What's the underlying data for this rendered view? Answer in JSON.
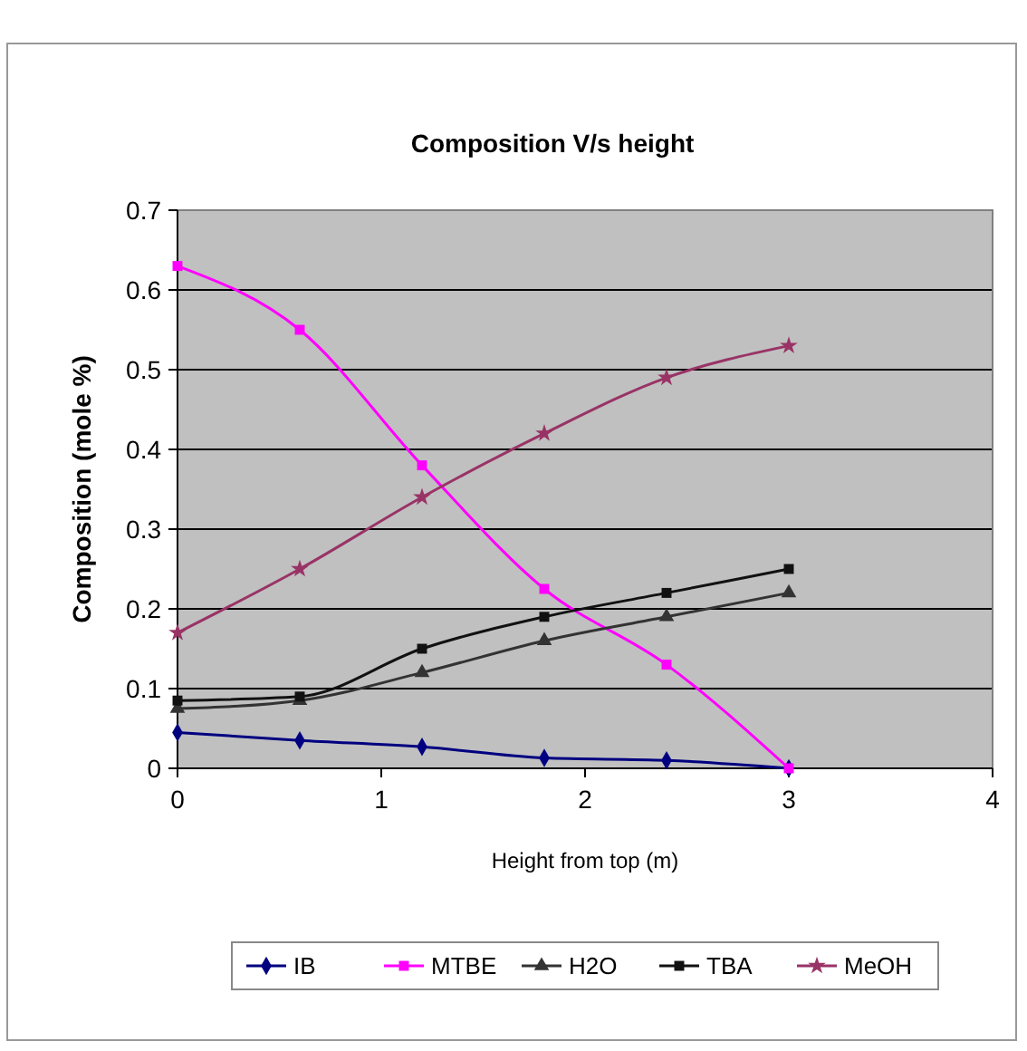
{
  "chart_data": {
    "type": "line",
    "title": "Composition V/s height",
    "xlabel": "Height from top (m)",
    "ylabel": "Composition (mole %)",
    "x": [
      0,
      0.6,
      1.2,
      1.8,
      2.4,
      3
    ],
    "xlim": [
      0,
      4
    ],
    "xticks": [
      0,
      1,
      2,
      3,
      4
    ],
    "ylim": [
      0,
      0.7
    ],
    "yticks": [
      0,
      0.1,
      0.2,
      0.3,
      0.4,
      0.5,
      0.6,
      0.7
    ],
    "grid": "y",
    "legend": "bottom",
    "series": [
      {
        "name": "IB",
        "color": "#000080",
        "marker": "diamond",
        "values": [
          0.045,
          0.035,
          0.027,
          0.013,
          0.01,
          0
        ]
      },
      {
        "name": "MTBE",
        "color": "#ff00ff",
        "marker": "square",
        "values": [
          0.63,
          0.55,
          0.38,
          0.225,
          0.13,
          0
        ]
      },
      {
        "name": "H2O",
        "color": "#333333",
        "marker": "triangle",
        "values": [
          0.075,
          0.085,
          0.12,
          0.16,
          0.19,
          0.22
        ]
      },
      {
        "name": "TBA",
        "color": "#111111",
        "marker": "square",
        "values": [
          0.085,
          0.09,
          0.15,
          0.19,
          0.22,
          0.25
        ]
      },
      {
        "name": "MeOH",
        "color": "#993366",
        "marker": "star",
        "values": [
          0.17,
          0.25,
          0.34,
          0.42,
          0.49,
          0.53
        ]
      }
    ]
  }
}
